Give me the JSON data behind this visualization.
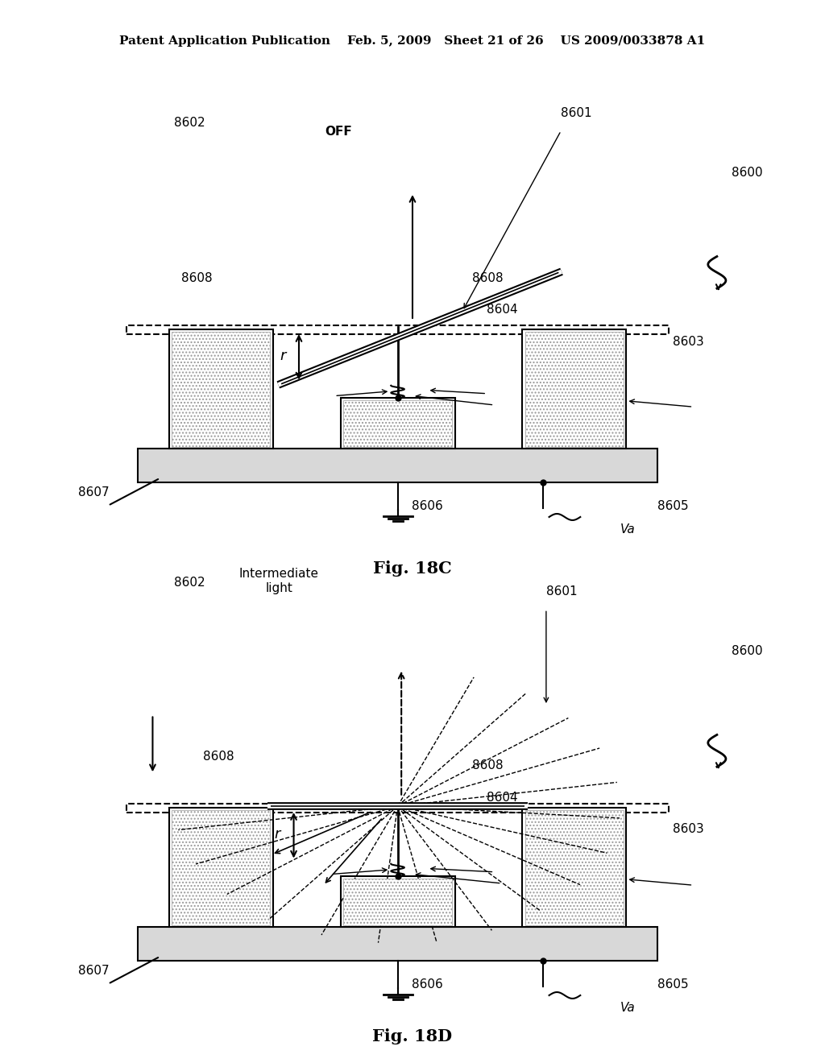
{
  "bg_color": "#ffffff",
  "line_color": "#000000",
  "hatch_color": "#888888",
  "header_text": "Patent Application Publication    Feb. 5, 2009   Sheet 21 of 26    US 2009/0033878 A1",
  "fig18c_label": "Fig. 18C",
  "fig18d_label": "Fig. 18D",
  "labels": {
    "8600": "8600",
    "8601": "8601",
    "8602": "8602",
    "8603": "8603",
    "8604": "8604",
    "8605": "8605",
    "8606": "8606",
    "8607": "8607",
    "8608a": "8608",
    "8608b": "8608",
    "OFF": "OFF",
    "Va_c": "Va",
    "Va_d": "Va",
    "inter_light": "Intermediate\nlight"
  }
}
